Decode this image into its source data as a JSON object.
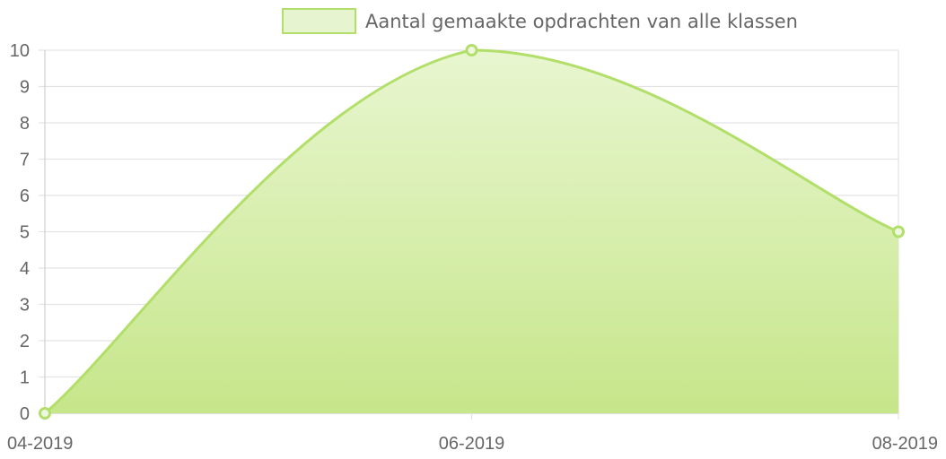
{
  "chart_data": {
    "type": "area",
    "title": "",
    "xlabel": "",
    "ylabel": "",
    "categories": [
      "04-2019",
      "06-2019",
      "08-2019"
    ],
    "series": [
      {
        "name": "Aantal gemaakte opdrachten van alle klassen",
        "values": [
          0,
          10,
          5
        ]
      }
    ],
    "ylim": [
      0,
      10
    ],
    "y_ticks": [
      0,
      1,
      2,
      3,
      4,
      5,
      6,
      7,
      8,
      9,
      10
    ],
    "grid": true,
    "legend": "top-center",
    "colors": {
      "line": "#b2df6a",
      "fill_top": "#e8f6d0",
      "fill_bottom": "#c6e68a",
      "legend_fill": "#e6f5cf",
      "point_fill": "#eef8e0",
      "grid": "#e3e3e3",
      "text": "#666666"
    }
  }
}
